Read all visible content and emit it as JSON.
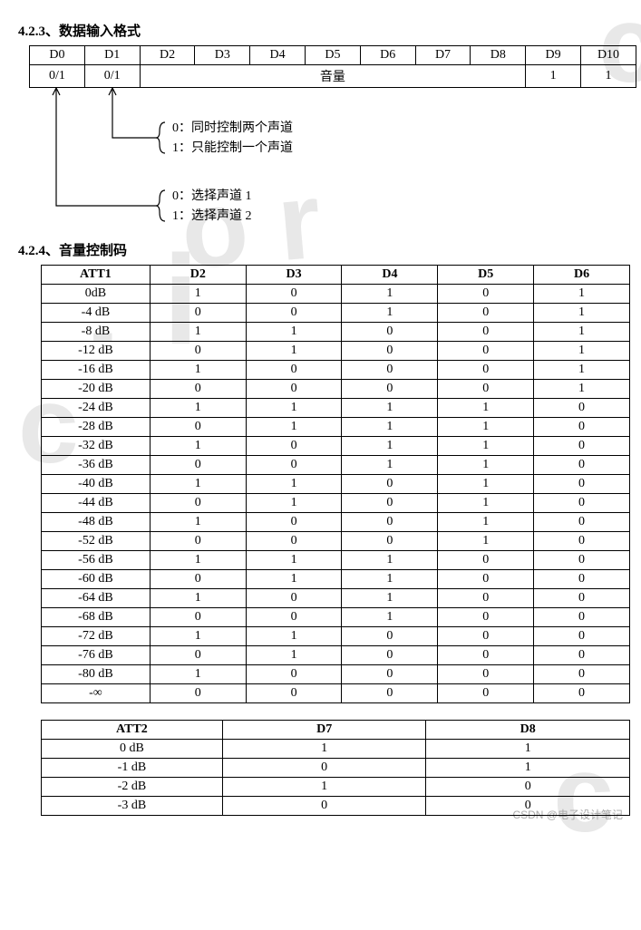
{
  "section1": {
    "heading": "4.2.3、数据输入格式",
    "table": {
      "headers": [
        "D0",
        "D1",
        "D2",
        "D3",
        "D4",
        "D5",
        "D6",
        "D7",
        "D8",
        "D9",
        "D10"
      ],
      "row": {
        "c0": "0/1",
        "c1": "0/1",
        "vol": "音量",
        "c9": "1",
        "c10": "1"
      }
    },
    "annot1_line1": "0：同时控制两个声道",
    "annot1_line2": "1：只能控制一个声道",
    "annot2_line1": "0：选择声道 1",
    "annot2_line2": "1：选择声道 2"
  },
  "section2": {
    "heading": "4.2.4、音量控制码",
    "table1": {
      "headers": [
        "ATT1",
        "D2",
        "D3",
        "D4",
        "D5",
        "D6"
      ],
      "rows": [
        [
          "0dB",
          "1",
          "0",
          "1",
          "0",
          "1"
        ],
        [
          "-4 dB",
          "0",
          "0",
          "1",
          "0",
          "1"
        ],
        [
          "-8 dB",
          "1",
          "1",
          "0",
          "0",
          "1"
        ],
        [
          "-12 dB",
          "0",
          "1",
          "0",
          "0",
          "1"
        ],
        [
          "-16 dB",
          "1",
          "0",
          "0",
          "0",
          "1"
        ],
        [
          "-20 dB",
          "0",
          "0",
          "0",
          "0",
          "1"
        ],
        [
          "-24 dB",
          "1",
          "1",
          "1",
          "1",
          "0"
        ],
        [
          "-28 dB",
          "0",
          "1",
          "1",
          "1",
          "0"
        ],
        [
          "-32 dB",
          "1",
          "0",
          "1",
          "1",
          "0"
        ],
        [
          "-36 dB",
          "0",
          "0",
          "1",
          "1",
          "0"
        ],
        [
          "-40 dB",
          "1",
          "1",
          "0",
          "1",
          "0"
        ],
        [
          "-44 dB",
          "0",
          "1",
          "0",
          "1",
          "0"
        ],
        [
          "-48 dB",
          "1",
          "0",
          "0",
          "1",
          "0"
        ],
        [
          "-52 dB",
          "0",
          "0",
          "0",
          "1",
          "0"
        ],
        [
          "-56 dB",
          "1",
          "1",
          "1",
          "0",
          "0"
        ],
        [
          "-60 dB",
          "0",
          "1",
          "1",
          "0",
          "0"
        ],
        [
          "-64 dB",
          "1",
          "0",
          "1",
          "0",
          "0"
        ],
        [
          "-68 dB",
          "0",
          "0",
          "1",
          "0",
          "0"
        ],
        [
          "-72 dB",
          "1",
          "1",
          "0",
          "0",
          "0"
        ],
        [
          "-76 dB",
          "0",
          "1",
          "0",
          "0",
          "0"
        ],
        [
          "-80 dB",
          "1",
          "0",
          "0",
          "0",
          "0"
        ],
        [
          "-∞",
          "0",
          "0",
          "0",
          "0",
          "0"
        ]
      ]
    },
    "table2": {
      "headers": [
        "ATT2",
        "D7",
        "D8"
      ],
      "rows": [
        [
          "0 dB",
          "1",
          "1"
        ],
        [
          "-1 dB",
          "0",
          "1"
        ],
        [
          "-2 dB",
          "1",
          "0"
        ],
        [
          "-3 dB",
          "0",
          "0"
        ]
      ]
    }
  },
  "footer": "CSDN @电子设计笔记",
  "colors": {
    "text": "#000000",
    "bg": "#ffffff",
    "wm": "#e8e8e8",
    "footer": "#aaaaaa"
  }
}
